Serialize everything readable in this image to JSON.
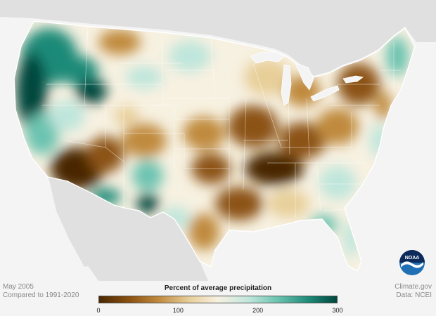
{
  "map": {
    "title": "",
    "legend_title": "Percent of average precipitation",
    "legend_ticks": [
      "0",
      "100",
      "200",
      "300"
    ],
    "legend_tick_values": [
      0,
      100,
      200,
      300
    ],
    "legend_range": [
      0,
      300
    ],
    "colors": {
      "dry_extreme": "#4a2800",
      "dry_strong": "#8c5212",
      "dry": "#c08a3e",
      "dry_light": "#e8cf9a",
      "normal": "#f7f1e1",
      "wet_light": "#bfe6dc",
      "wet": "#6cc3b0",
      "wet_strong": "#1f8a78",
      "wet_extreme": "#00473d",
      "background": "#f4f4f4",
      "neighbor_land": "#e0e0e0"
    },
    "regions": [
      {
        "name": "Pacific Northwest",
        "category": "wet_strong"
      },
      {
        "name": "California",
        "category": "wet_extreme"
      },
      {
        "name": "Nevada",
        "category": "wet"
      },
      {
        "name": "Arizona",
        "category": "dry_extreme"
      },
      {
        "name": "New Mexico",
        "category": "dry_strong"
      },
      {
        "name": "Colorado",
        "category": "dry"
      },
      {
        "name": "Northern Plains",
        "category": "wet_light"
      },
      {
        "name": "Upper Midwest",
        "category": "dry_light"
      },
      {
        "name": "Central Plains",
        "category": "dry"
      },
      {
        "name": "Mississippi Valley",
        "category": "dry_strong"
      },
      {
        "name": "Ohio Valley",
        "category": "dry_strong"
      },
      {
        "name": "Northeast",
        "category": "dry"
      },
      {
        "name": "New England",
        "category": "wet"
      },
      {
        "name": "Texas",
        "category": "dry"
      },
      {
        "name": "Southeast",
        "category": "wet_light"
      },
      {
        "name": "Florida",
        "category": "wet_light"
      }
    ]
  },
  "footer": {
    "date": "May 2005",
    "baseline": "Compared to 1991-2020",
    "source_site": "Climate.gov",
    "source_data": "Data: NCEI"
  },
  "logo": {
    "text": "NOAA",
    "icon": "noaa-logo-icon"
  }
}
